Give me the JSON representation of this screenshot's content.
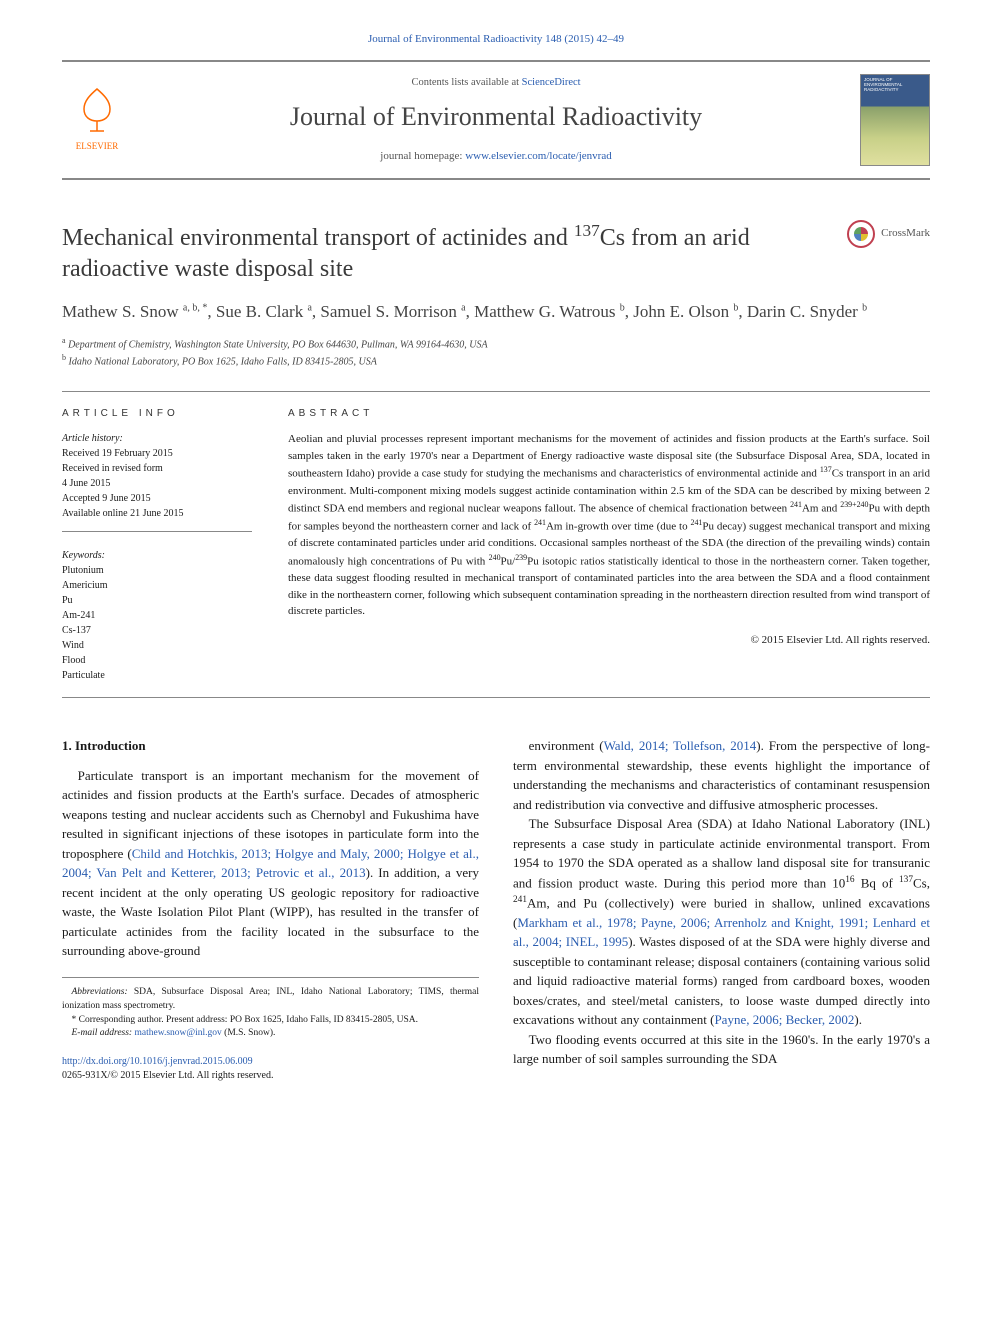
{
  "colors": {
    "link": "#2a5db0",
    "elsevier_orange": "#ff6a00",
    "rule": "#888888",
    "body_text": "#1a1a1a",
    "muted": "#555555",
    "journal_title": "#444444"
  },
  "typography": {
    "body_font": "Georgia, 'Times New Roman', serif",
    "journal_name_fontsize": 26,
    "article_title_fontsize": 24,
    "authors_fontsize": 17,
    "body_fontsize": 13,
    "abstract_fontsize": 11,
    "info_left_fontsize": 10,
    "footnote_fontsize": 9.5
  },
  "citation": {
    "text": "Journal of Environmental Radioactivity 148 (2015) 42–49",
    "href": "#"
  },
  "header": {
    "publisher": "ELSEVIER",
    "contents_prefix": "Contents lists available at ",
    "contents_link_text": "ScienceDirect",
    "journal_name": "Journal of Environmental Radioactivity",
    "homepage_prefix": "journal homepage: ",
    "homepage_link_text": "www.elsevier.com/locate/jenvrad",
    "cover_alt": "Journal cover"
  },
  "crossmark": {
    "label": "CrossMark"
  },
  "article": {
    "title_html": "Mechanical environmental transport of actinides and <sup>137</sup>Cs from an arid radioactive waste disposal site",
    "authors_html": "Mathew S. Snow <sup>a, b, *</sup>, Sue B. Clark <sup>a</sup>, Samuel S. Morrison <sup>a</sup>, Matthew G. Watrous <sup>b</sup>, John E. Olson <sup>b</sup>, Darin C. Snyder <sup>b</sup>",
    "affiliations": [
      {
        "marker": "a",
        "text": "Department of Chemistry, Washington State University, PO Box 644630, Pullman, WA 99164-4630, USA"
      },
      {
        "marker": "b",
        "text": "Idaho National Laboratory, PO Box 1625, Idaho Falls, ID 83415-2805, USA"
      }
    ]
  },
  "info": {
    "left_heading": "ARTICLE INFO",
    "right_heading": "ABSTRACT",
    "history_label": "Article history:",
    "history": [
      "Received 19 February 2015",
      "Received in revised form",
      "4 June 2015",
      "Accepted 9 June 2015",
      "Available online 21 June 2015"
    ],
    "keywords_label": "Keywords:",
    "keywords": [
      "Plutonium",
      "Americium",
      "Pu",
      "Am-241",
      "Cs-137",
      "Wind",
      "Flood",
      "Particulate"
    ],
    "abstract_html": "Aeolian and pluvial processes represent important mechanisms for the movement of actinides and fission products at the Earth's surface. Soil samples taken in the early 1970's near a Department of Energy radioactive waste disposal site (the Subsurface Disposal Area, SDA, located in southeastern Idaho) provide a case study for studying the mechanisms and characteristics of environmental actinide and <sup>137</sup>Cs transport in an arid environment. Multi-component mixing models suggest actinide contamination within 2.5 km of the SDA can be described by mixing between 2 distinct SDA end members and regional nuclear weapons fallout. The absence of chemical fractionation between <sup>241</sup>Am and <sup>239+240</sup>Pu with depth for samples beyond the northeastern corner and lack of <sup>241</sup>Am in-growth over time (due to <sup>241</sup>Pu decay) suggest mechanical transport and mixing of discrete contaminated particles under arid conditions. Occasional samples northeast of the SDA (the direction of the prevailing winds) contain anomalously high concentrations of Pu with <sup>240</sup>Pu/<sup>239</sup>Pu isotopic ratios statistically identical to those in the northeastern corner. Taken together, these data suggest flooding resulted in mechanical transport of contaminated particles into the area between the SDA and a flood containment dike in the northeastern corner, following which subsequent contamination spreading in the northeastern direction resulted from wind transport of discrete particles.",
    "copyright": "© 2015 Elsevier Ltd. All rights reserved."
  },
  "body": {
    "section_number": "1.",
    "section_title": "Introduction",
    "left_paras_html": [
      "Particulate transport is an important mechanism for the movement of actinides and fission products at the Earth's surface. Decades of atmospheric weapons testing and nuclear accidents such as Chernobyl and Fukushima have resulted in significant injections of these isotopes in particulate form into the troposphere (<span class=\"ref-link\">Child and Hotchkis, 2013; Holgye and Maly, 2000; Holgye et al., 2004; Van Pelt and Ketterer, 2013; Petrovic et al., 2013</span>). In addition, a very recent incident at the only operating US geologic repository for radioactive waste, the Waste Isolation Pilot Plant (WIPP), has resulted in the transfer of particulate actinides from the facility located in the subsurface to the surrounding above-ground"
    ],
    "right_paras_html": [
      "environment (<span class=\"ref-link\">Wald, 2014; Tollefson, 2014</span>). From the perspective of long-term environmental stewardship, these events highlight the importance of understanding the mechanisms and characteristics of contaminant resuspension and redistribution via convective and diffusive atmospheric processes.",
      "The Subsurface Disposal Area (SDA) at Idaho National Laboratory (INL) represents a case study in particulate actinide environmental transport. From 1954 to 1970 the SDA operated as a shallow land disposal site for transuranic and fission product waste. During this period more than 10<sup>16</sup> Bq of <sup>137</sup>Cs, <sup>241</sup>Am, and Pu (collectively) were buried in shallow, unlined excavations (<span class=\"ref-link\">Markham et al., 1978; Payne, 2006; Arrenholz and Knight, 1991; Lenhard et al., 2004; INEL, 1995</span>). Wastes disposed of at the SDA were highly diverse and susceptible to contaminant release; disposal containers (containing various solid and liquid radioactive material forms) ranged from cardboard boxes, wooden boxes/crates, and steel/metal canisters, to loose waste dumped directly into excavations without any containment (<span class=\"ref-link\">Payne, 2006; Becker, 2002</span>).",
      "Two flooding events occurred at this site in the 1960's. In the early 1970's a large number of soil samples surrounding the SDA"
    ]
  },
  "footnotes": {
    "abbrev_label": "Abbreviations:",
    "abbrev_text": " SDA, Subsurface Disposal Area; INL, Idaho National Laboratory; TIMS, thermal ionization mass spectrometry.",
    "corr_label": "* Corresponding author.",
    "corr_text": " Present address: PO Box 1625, Idaho Falls, ID 83415-2805, USA.",
    "email_label": "E-mail address:",
    "email_value": "mathew.snow@inl.gov",
    "email_suffix": " (M.S. Snow)."
  },
  "doi": {
    "url_text": "http://dx.doi.org/10.1016/j.jenvrad.2015.06.009",
    "issn_line": "0265-931X/© 2015 Elsevier Ltd. All rights reserved."
  }
}
